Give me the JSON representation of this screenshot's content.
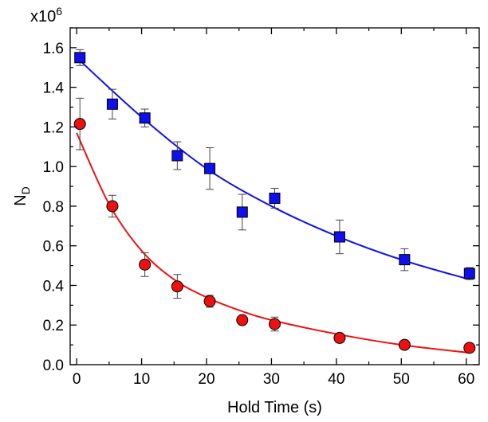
{
  "chart_data": {
    "type": "scatter",
    "xlabel": "Hold Time (s)",
    "ylabel": "N",
    "ylabel_subscript": "D",
    "y_multiplier": "x10",
    "y_multiplier_exponent": "6",
    "xlim": [
      -1,
      62
    ],
    "ylim": [
      0,
      1.7
    ],
    "x_ticks": [
      0,
      10,
      20,
      30,
      40,
      50,
      60
    ],
    "x_tick_labels": [
      "0",
      "10",
      "20",
      "30",
      "40",
      "50",
      "60"
    ],
    "y_ticks": [
      0,
      0.2,
      0.4,
      0.6,
      0.8,
      1.0,
      1.2,
      1.4,
      1.6
    ],
    "y_tick_labels": [
      "0.0",
      "0.2",
      "0.4",
      "0.6",
      "0.8",
      "1.0",
      "1.2",
      "1.4",
      "1.6"
    ],
    "grid": false,
    "series": [
      {
        "marker": "square",
        "color": "#1010ee",
        "points": [
          {
            "x": 0.5,
            "y": 1.55,
            "err": 0.04
          },
          {
            "x": 5.5,
            "y": 1.315,
            "err": 0.075
          },
          {
            "x": 10.5,
            "y": 1.245,
            "err": 0.045
          },
          {
            "x": 15.5,
            "y": 1.055,
            "err": 0.07
          },
          {
            "x": 20.5,
            "y": 0.99,
            "err": 0.105
          },
          {
            "x": 25.5,
            "y": 0.77,
            "err": 0.09
          },
          {
            "x": 30.5,
            "y": 0.84,
            "err": 0.05
          },
          {
            "x": 40.5,
            "y": 0.645,
            "err": 0.085
          },
          {
            "x": 50.5,
            "y": 0.53,
            "err": 0.055
          },
          {
            "x": 60.5,
            "y": 0.46,
            "err": 0.03
          }
        ],
        "fit": {
          "x": [
            0,
            10,
            20,
            30,
            40,
            50,
            60.5
          ],
          "y": [
            1.55,
            1.25,
            0.99,
            0.8,
            0.65,
            0.53,
            0.43
          ]
        }
      },
      {
        "marker": "circle",
        "color": "#ee1010",
        "points": [
          {
            "x": 0.5,
            "y": 1.215,
            "err": 0.13
          },
          {
            "x": 5.5,
            "y": 0.8,
            "err": 0.055
          },
          {
            "x": 10.5,
            "y": 0.505,
            "err": 0.06
          },
          {
            "x": 15.5,
            "y": 0.395,
            "err": 0.06
          },
          {
            "x": 20.5,
            "y": 0.32,
            "err": 0.03
          },
          {
            "x": 25.5,
            "y": 0.225,
            "err": 0.015
          },
          {
            "x": 30.5,
            "y": 0.205,
            "err": 0.035
          },
          {
            "x": 40.5,
            "y": 0.135,
            "err": 0.015
          },
          {
            "x": 50.5,
            "y": 0.1,
            "err": 0.01
          },
          {
            "x": 60.5,
            "y": 0.085,
            "err": 0.01
          }
        ],
        "fit": {
          "x": [
            0,
            5,
            10,
            15,
            20,
            25,
            30,
            40,
            50,
            60.5
          ],
          "y": [
            1.17,
            0.81,
            0.575,
            0.43,
            0.34,
            0.275,
            0.225,
            0.155,
            0.1,
            0.06
          ]
        }
      }
    ]
  }
}
